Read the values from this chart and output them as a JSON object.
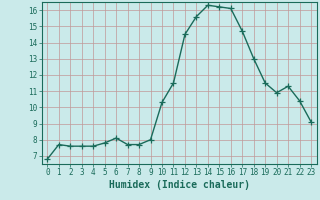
{
  "x": [
    0,
    1,
    2,
    3,
    4,
    5,
    6,
    7,
    8,
    9,
    10,
    11,
    12,
    13,
    14,
    15,
    16,
    17,
    18,
    19,
    20,
    21,
    22,
    23
  ],
  "y": [
    6.8,
    7.7,
    7.6,
    7.6,
    7.6,
    7.8,
    8.1,
    7.7,
    7.7,
    8.0,
    10.3,
    11.5,
    14.5,
    15.6,
    16.3,
    16.2,
    16.1,
    14.7,
    13.0,
    11.5,
    10.9,
    11.3,
    10.4,
    9.1
  ],
  "line_color": "#1a6b5a",
  "marker": "+",
  "markersize": 4,
  "linewidth": 1.0,
  "background_color": "#caeaea",
  "grid_color_major": "#c09898",
  "grid_color_minor": "#c09898",
  "xlabel": "Humidex (Indice chaleur)",
  "xlim": [
    -0.5,
    23.5
  ],
  "ylim": [
    6.5,
    16.5
  ],
  "yticks": [
    7,
    8,
    9,
    10,
    11,
    12,
    13,
    14,
    15,
    16
  ],
  "xticks": [
    0,
    1,
    2,
    3,
    4,
    5,
    6,
    7,
    8,
    9,
    10,
    11,
    12,
    13,
    14,
    15,
    16,
    17,
    18,
    19,
    20,
    21,
    22,
    23
  ],
  "tick_color": "#1a6b5a",
  "label_color": "#1a6b5a",
  "axis_color": "#1a6b5a",
  "tick_fontsize": 5.5,
  "xlabel_fontsize": 7.0
}
